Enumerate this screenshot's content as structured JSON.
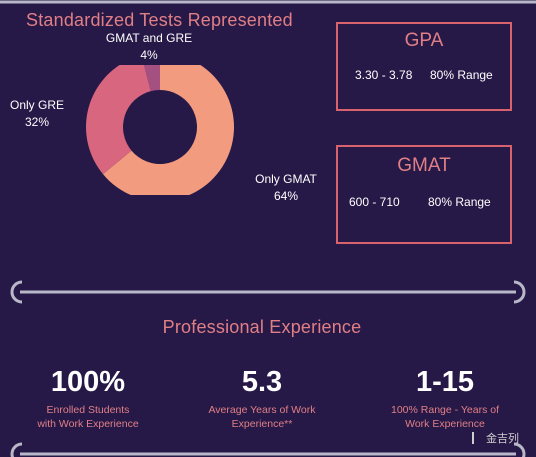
{
  "tests": {
    "title": "Standardized Tests Represented",
    "labels": [
      {
        "name": "GMAT and GRE",
        "pct": "4%"
      },
      {
        "name": "Only GRE",
        "pct": "32%"
      },
      {
        "name": "Only GMAT",
        "pct": "64%"
      }
    ]
  },
  "gpa_box": {
    "title": "GPA",
    "range": "3.30 - 3.78",
    "note": "80% Range"
  },
  "gmat_box": {
    "title": "GMAT",
    "range": "600 - 710",
    "note": "80% Range"
  },
  "experience": {
    "title": "Professional Experience",
    "stats": [
      {
        "value": "100%",
        "caption_l1": "Enrolled Students",
        "caption_l2": "with Work Experience"
      },
      {
        "value": "5.3",
        "caption_l1": "Average Years of Work",
        "caption_l2": "Experience**"
      },
      {
        "value": "1-15",
        "caption_l1": "100% Range - Years of",
        "caption_l2": "Work Experience"
      }
    ]
  },
  "watermark": "金吉列",
  "colors": {
    "background": "#271947",
    "accent": "#e07f86",
    "gmat": "#f29b7e",
    "gre": "#d9667f",
    "both": "#a45182",
    "divider": "#b8b8c8"
  },
  "chart_data": {
    "type": "pie",
    "style": "donut",
    "title": "Standardized Tests Represented",
    "categories": [
      "Only GMAT",
      "Only GRE",
      "GMAT and GRE"
    ],
    "values": [
      64,
      32,
      4
    ],
    "unit": "%",
    "colors": [
      "#f29b7e",
      "#d9667f",
      "#a45182"
    ]
  }
}
